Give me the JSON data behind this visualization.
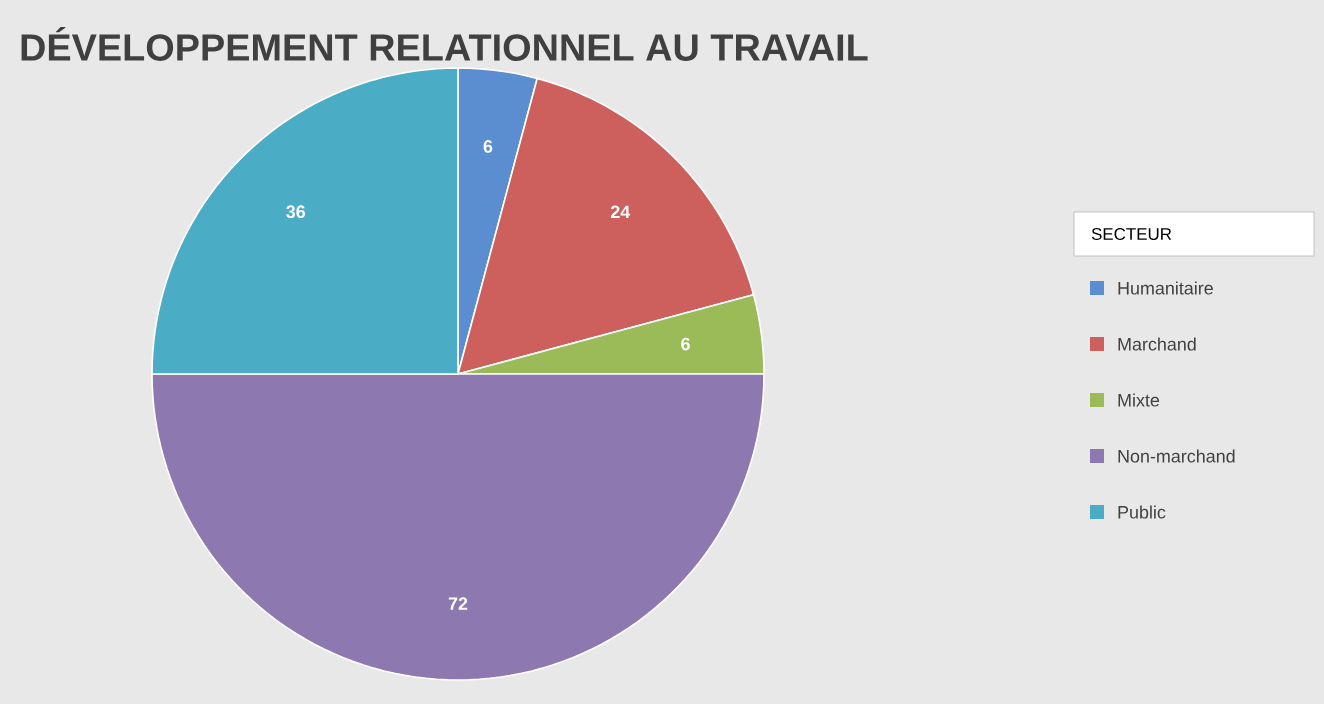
{
  "chart_data": {
    "type": "pie",
    "title": "DÉVELOPPEMENT RELATIONNEL AU TRAVAIL",
    "legend_title": "SECTEUR",
    "categories": [
      "Humanitaire",
      "Marchand",
      "Mixte",
      "Non-marchand",
      "Public"
    ],
    "values": [
      6,
      24,
      6,
      72,
      36
    ],
    "colors": [
      "#5b8ed0",
      "#cd605d",
      "#9bbb59",
      "#8e78b0",
      "#4bacc6"
    ],
    "data_labels": true,
    "legend": "right"
  }
}
